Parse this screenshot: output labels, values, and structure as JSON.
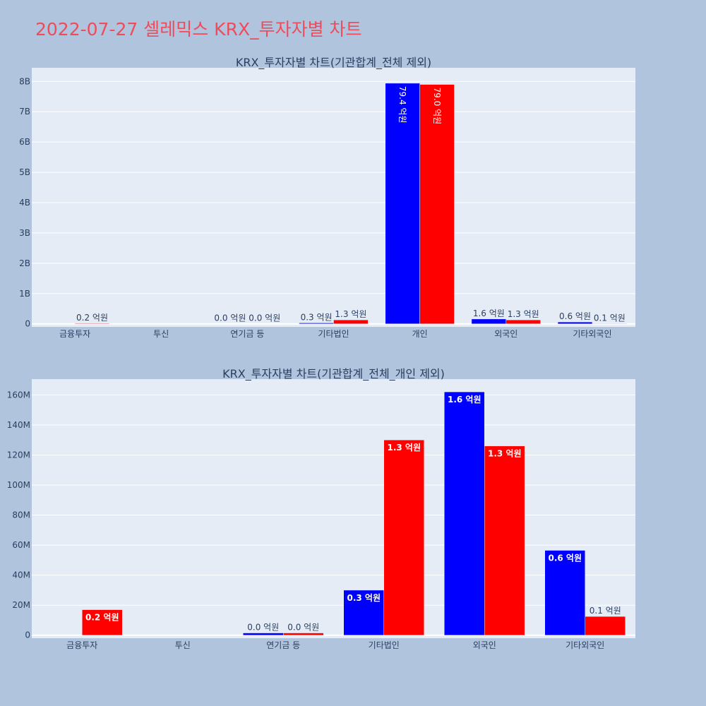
{
  "title": "2022-07-27 셀레믹스 KRX_투자자별 차트",
  "colors": {
    "buy": "#0000ff",
    "sell": "#ff0000",
    "plot_bg": "#e5ecf6",
    "page_bg": "#b0c4de",
    "title": "#ef4b5a"
  },
  "chart_data": [
    {
      "type": "bar",
      "title": "KRX_투자자별 차트(기관합계_전체 제외)",
      "categories": [
        "금융투자",
        "투신",
        "연기금 등",
        "기타법인",
        "개인",
        "외국인",
        "기타외국인"
      ],
      "series": [
        {
          "color": "#0000ff",
          "values": [
            0,
            0,
            0,
            30000000,
            7940000000,
            160000000,
            60000000
          ],
          "labels": [
            "",
            "",
            "0.0 억원",
            "0.3 억원",
            "79.4 억원",
            "1.6 억원",
            "0.6 억원"
          ]
        },
        {
          "color": "#ff0000",
          "values": [
            17000000,
            0,
            0,
            130000000,
            7900000000,
            130000000,
            10000000
          ],
          "labels": [
            "0.2 억원",
            "",
            "0.0 억원",
            "1.3 억원",
            "79.0 억원",
            "1.3 억원",
            "0.1 억원"
          ]
        }
      ],
      "yticks": [
        0,
        1000000000,
        2000000000,
        3000000000,
        4000000000,
        5000000000,
        6000000000,
        7000000000,
        8000000000
      ],
      "ytick_labels": [
        "0",
        "1B",
        "2B",
        "3B",
        "4B",
        "5B",
        "6B",
        "7B",
        "8B"
      ],
      "ylim": [
        -100000000,
        8450000000
      ],
      "grid": true
    },
    {
      "type": "bar",
      "title": "KRX_투자자별 차트(기관합계_전체_개인 제외)",
      "categories": [
        "금융투자",
        "투신",
        "연기금 등",
        "기타법인",
        "외국인",
        "기타외국인"
      ],
      "series": [
        {
          "color": "#0000ff",
          "values": [
            0,
            0,
            1500000,
            30000000,
            162000000,
            56500000
          ],
          "labels": [
            "",
            "",
            "0.0 억원",
            "0.3 억원",
            "1.6 억원",
            "0.6 억원"
          ]
        },
        {
          "color": "#ff0000",
          "values": [
            17000000,
            0,
            1500000,
            130000000,
            126000000,
            12500000
          ],
          "labels": [
            "0.2 억원",
            "",
            "0.0 억원",
            "1.3 억원",
            "1.3 억원",
            "0.1 억원"
          ]
        }
      ],
      "yticks": [
        0,
        20000000,
        40000000,
        60000000,
        80000000,
        100000000,
        120000000,
        140000000,
        160000000
      ],
      "ytick_labels": [
        "0",
        "20M",
        "40M",
        "60M",
        "80M",
        "100M",
        "120M",
        "140M",
        "160M"
      ],
      "ylim": [
        -2000000,
        170500000
      ],
      "grid": true
    }
  ]
}
